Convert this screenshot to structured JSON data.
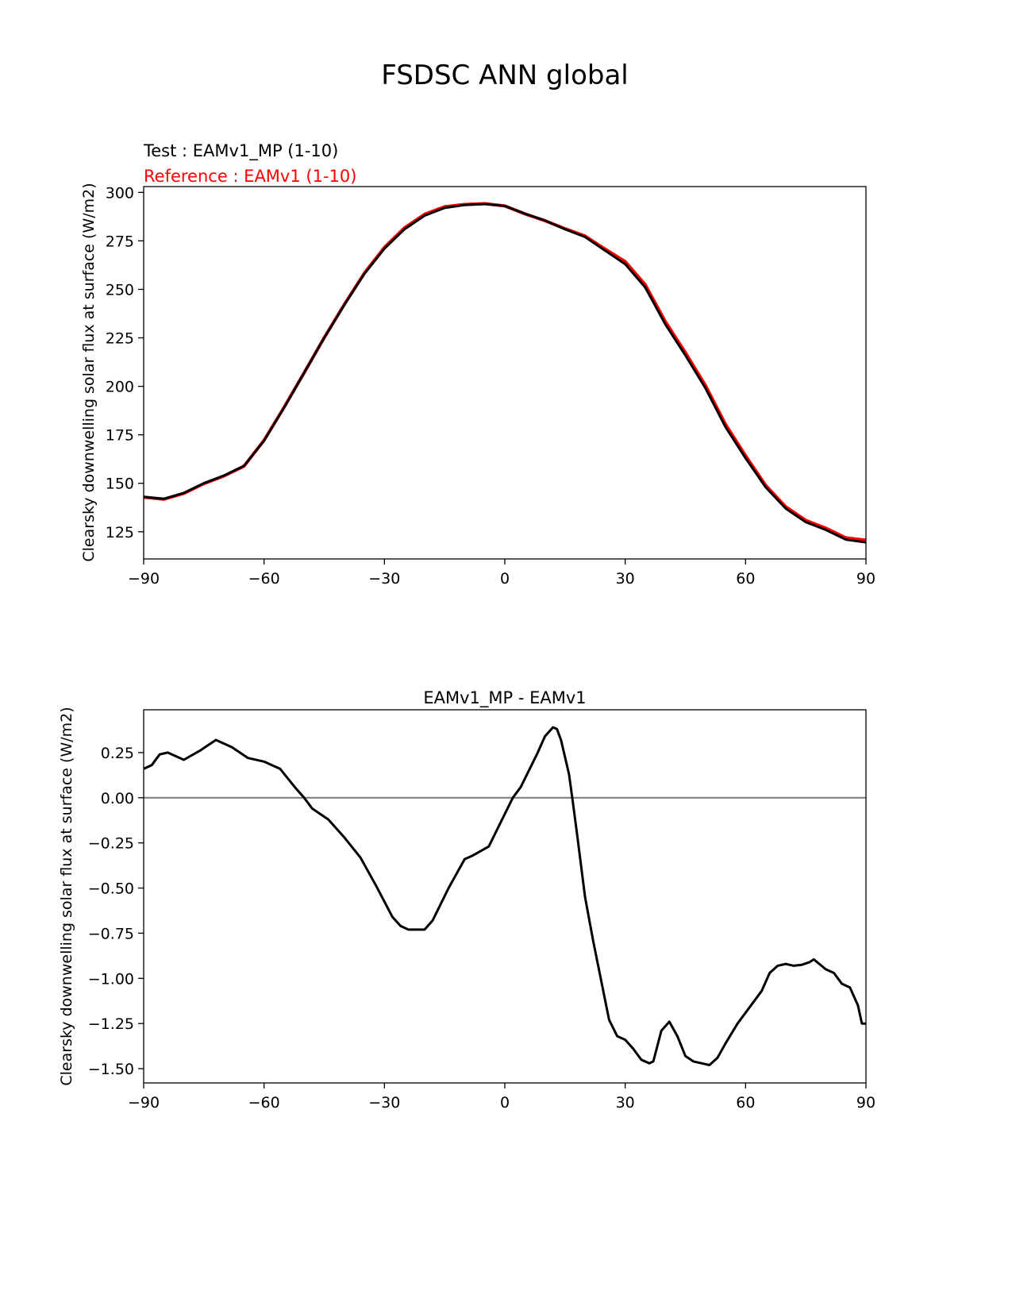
{
  "figure_title": "FSDSC ANN global",
  "chart_data": [
    {
      "type": "line",
      "test_label": "Test : EAMv1_MP (1-10)",
      "reference_label": "Reference : EAMv1 (1-10)",
      "xlabel": "",
      "ylabel": "Clearsky downwelling solar flux at surface (W/m2)",
      "xlim": [
        -90,
        90
      ],
      "ylim": [
        111,
        303
      ],
      "xticks": [
        -90,
        -60,
        -30,
        0,
        30,
        60,
        90
      ],
      "xtick_labels": [
        "−90",
        "−60",
        "−30",
        "0",
        "30",
        "60",
        "90"
      ],
      "yticks": [
        125,
        150,
        175,
        200,
        225,
        250,
        275,
        300
      ],
      "ytick_labels": [
        "125",
        "150",
        "175",
        "200",
        "225",
        "250",
        "275",
        "300"
      ],
      "x": [
        -90,
        -85,
        -80,
        -75,
        -70,
        -65,
        -60,
        -55,
        -50,
        -45,
        -40,
        -35,
        -30,
        -25,
        -20,
        -15,
        -10,
        -5,
        0,
        5,
        10,
        15,
        20,
        25,
        30,
        35,
        40,
        45,
        50,
        55,
        60,
        65,
        70,
        75,
        80,
        85,
        90
      ],
      "series": [
        {
          "name": "Reference : EAMv1 (1-10)",
          "color": "#ff0000",
          "values": [
            142.8,
            141.8,
            144.8,
            149.8,
            153.8,
            158.8,
            172.2,
            189.2,
            207.0,
            225.1,
            242.2,
            258.4,
            271.6,
            281.7,
            288.7,
            292.6,
            293.8,
            294.2,
            293.0,
            288.9,
            285.4,
            281.3,
            277.5,
            270.8,
            264.3,
            252.4,
            233.4,
            217.4,
            200.4,
            180.4,
            164.2,
            149.0,
            137.9,
            130.9,
            126.9,
            121.9,
            120.7
          ]
        },
        {
          "name": "Test : EAMv1_MP (1-10)",
          "color": "#000000",
          "values": [
            143.0,
            142.0,
            145.0,
            150.0,
            154.0,
            159.0,
            172.0,
            189.0,
            207.0,
            225.0,
            242.0,
            258.0,
            271.0,
            281.0,
            288.0,
            292.0,
            293.5,
            294.0,
            293.0,
            289.0,
            285.5,
            281.0,
            277.0,
            270.0,
            263.0,
            251.0,
            232.0,
            216.0,
            199.0,
            179.0,
            163.0,
            148.0,
            137.0,
            130.0,
            126.0,
            121.0,
            119.5
          ]
        }
      ]
    },
    {
      "type": "line",
      "title": "EAMv1_MP - EAMv1",
      "xlabel": "",
      "ylabel": "Clearsky downwelling solar flux at surface (W/m2)",
      "xlim": [
        -90,
        90
      ],
      "ylim": [
        -1.579,
        0.487
      ],
      "xticks": [
        -90,
        -60,
        -30,
        0,
        30,
        60,
        90
      ],
      "xtick_labels": [
        "−90",
        "−60",
        "−30",
        "0",
        "30",
        "60",
        "90"
      ],
      "yticks": [
        0.25,
        0.0,
        -0.25,
        -0.5,
        -0.75,
        -1.0,
        -1.25,
        -1.5
      ],
      "ytick_labels": [
        "0.25",
        "0.00",
        "−0.25",
        "−0.50",
        "−0.75",
        "−1.00",
        "−1.25",
        "−1.50"
      ],
      "zero_line_color": "#808080",
      "series": [
        {
          "name": "EAMv1_MP - EAMv1",
          "color": "#000000",
          "x": [
            -90,
            -88,
            -86,
            -84,
            -80,
            -76,
            -72,
            -68,
            -64,
            -60,
            -56,
            -52,
            -50,
            -48,
            -44,
            -40,
            -36,
            -32,
            -28,
            -26,
            -24,
            -20,
            -18,
            -14,
            -10,
            -8,
            -4,
            -2,
            2,
            4,
            8,
            10,
            12,
            13,
            14,
            16,
            17,
            18,
            20,
            22,
            24,
            26,
            28,
            30,
            32,
            34,
            36,
            37,
            39,
            41,
            43,
            45,
            47,
            49,
            51,
            53,
            55,
            58,
            61,
            64,
            66,
            68,
            70,
            72,
            74,
            76,
            77,
            80,
            82,
            84,
            86,
            88,
            89,
            90
          ],
          "values": [
            0.16,
            0.18,
            0.24,
            0.25,
            0.21,
            0.26,
            0.32,
            0.28,
            0.22,
            0.2,
            0.16,
            0.05,
            0.0,
            -0.06,
            -0.12,
            -0.22,
            -0.33,
            -0.49,
            -0.66,
            -0.71,
            -0.73,
            -0.73,
            -0.68,
            -0.5,
            -0.34,
            -0.32,
            -0.27,
            -0.18,
            0.0,
            0.06,
            0.24,
            0.34,
            0.39,
            0.38,
            0.32,
            0.13,
            -0.03,
            -0.2,
            -0.55,
            -0.79,
            -1.01,
            -1.23,
            -1.32,
            -1.34,
            -1.39,
            -1.45,
            -1.47,
            -1.46,
            -1.29,
            -1.24,
            -1.32,
            -1.43,
            -1.46,
            -1.47,
            -1.48,
            -1.44,
            -1.36,
            -1.25,
            -1.16,
            -1.07,
            -0.97,
            -0.93,
            -0.92,
            -0.93,
            -0.925,
            -0.91,
            -0.895,
            -0.95,
            -0.97,
            -1.03,
            -1.05,
            -1.15,
            -1.25,
            -1.25
          ]
        }
      ]
    }
  ]
}
